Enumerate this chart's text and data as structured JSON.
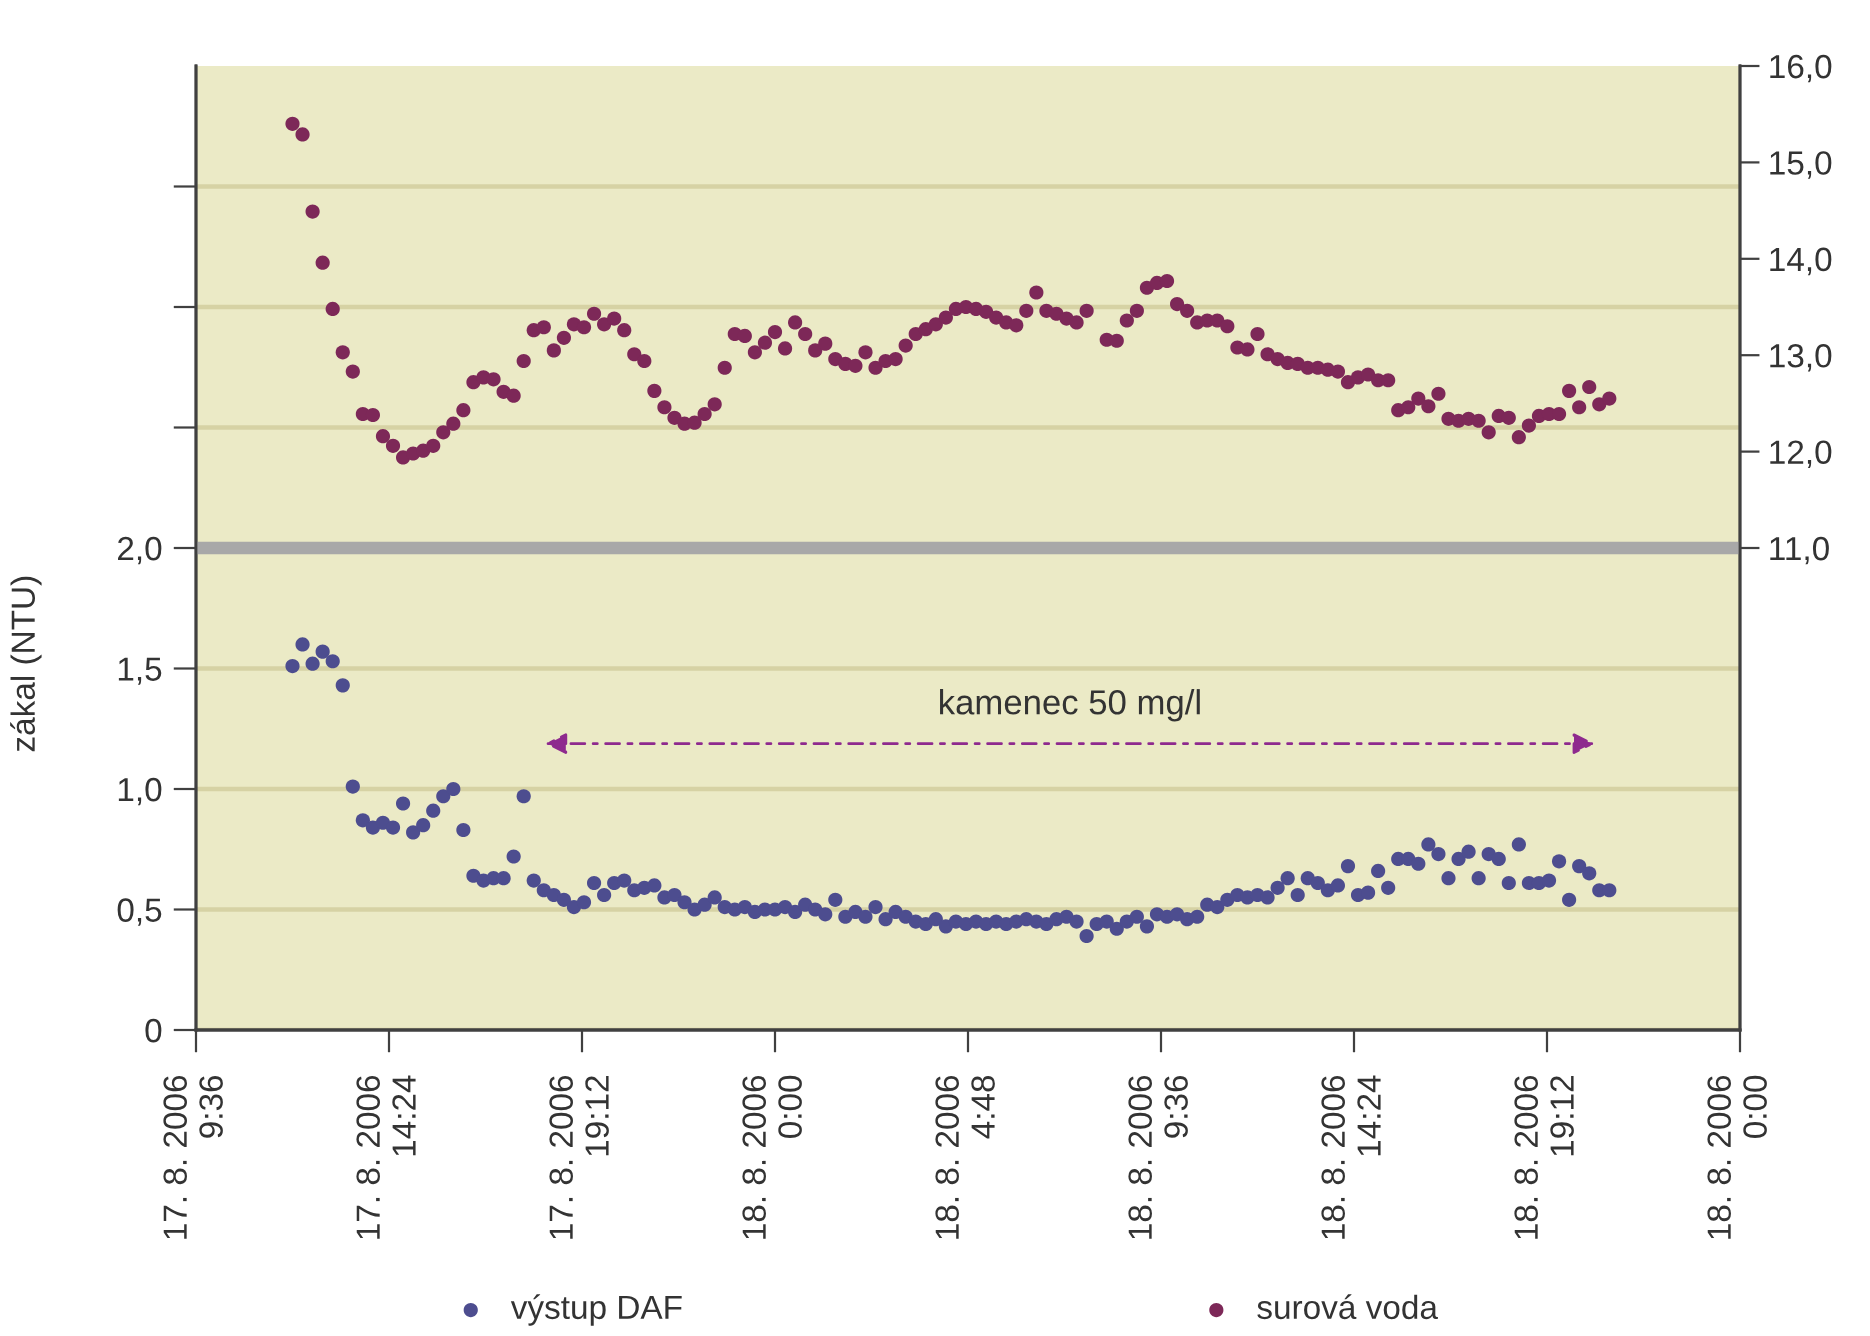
{
  "chart_data": {
    "type": "scatter",
    "ylabel": "zákal (NTU)",
    "x": [
      "2006-08-17T12:00",
      "2006-08-17T12:15",
      "2006-08-17T12:30",
      "2006-08-17T12:45",
      "2006-08-17T13:00",
      "2006-08-17T13:15",
      "2006-08-17T13:30",
      "2006-08-17T13:45",
      "2006-08-17T14:00",
      "2006-08-17T14:15",
      "2006-08-17T14:30",
      "2006-08-17T14:45",
      "2006-08-17T15:00",
      "2006-08-17T15:15",
      "2006-08-17T15:30",
      "2006-08-17T15:45",
      "2006-08-17T16:00",
      "2006-08-17T16:15",
      "2006-08-17T16:30",
      "2006-08-17T16:45",
      "2006-08-17T17:00",
      "2006-08-17T17:15",
      "2006-08-17T17:30",
      "2006-08-17T17:45",
      "2006-08-17T18:00",
      "2006-08-17T18:15",
      "2006-08-17T18:30",
      "2006-08-17T18:45",
      "2006-08-17T19:00",
      "2006-08-17T19:15",
      "2006-08-17T19:30",
      "2006-08-17T19:45",
      "2006-08-17T20:00",
      "2006-08-17T20:15",
      "2006-08-17T20:30",
      "2006-08-17T20:45",
      "2006-08-17T21:00",
      "2006-08-17T21:15",
      "2006-08-17T21:30",
      "2006-08-17T21:45",
      "2006-08-17T22:00",
      "2006-08-17T22:15",
      "2006-08-17T22:30",
      "2006-08-17T22:45",
      "2006-08-17T23:00",
      "2006-08-17T23:15",
      "2006-08-17T23:30",
      "2006-08-17T23:45",
      "2006-08-18T00:00",
      "2006-08-18T00:15",
      "2006-08-18T00:30",
      "2006-08-18T00:45",
      "2006-08-18T01:00",
      "2006-08-18T01:15",
      "2006-08-18T01:30",
      "2006-08-18T01:45",
      "2006-08-18T02:00",
      "2006-08-18T02:15",
      "2006-08-18T02:30",
      "2006-08-18T02:45",
      "2006-08-18T03:00",
      "2006-08-18T03:15",
      "2006-08-18T03:30",
      "2006-08-18T03:45",
      "2006-08-18T04:00",
      "2006-08-18T04:15",
      "2006-08-18T04:30",
      "2006-08-18T04:45",
      "2006-08-18T05:00",
      "2006-08-18T05:15",
      "2006-08-18T05:30",
      "2006-08-18T05:45",
      "2006-08-18T06:00",
      "2006-08-18T06:15",
      "2006-08-18T06:30",
      "2006-08-18T06:45",
      "2006-08-18T07:00",
      "2006-08-18T07:15",
      "2006-08-18T07:30",
      "2006-08-18T07:45",
      "2006-08-18T08:00",
      "2006-08-18T08:15",
      "2006-08-18T08:30",
      "2006-08-18T08:45",
      "2006-08-18T09:00",
      "2006-08-18T09:15",
      "2006-08-18T09:30",
      "2006-08-18T09:45",
      "2006-08-18T10:00",
      "2006-08-18T10:15",
      "2006-08-18T10:30",
      "2006-08-18T10:45",
      "2006-08-18T11:00",
      "2006-08-18T11:15",
      "2006-08-18T11:30",
      "2006-08-18T11:45",
      "2006-08-18T12:00",
      "2006-08-18T12:15",
      "2006-08-18T12:30",
      "2006-08-18T12:45",
      "2006-08-18T13:00",
      "2006-08-18T13:15",
      "2006-08-18T13:30",
      "2006-08-18T13:45",
      "2006-08-18T14:00",
      "2006-08-18T14:15",
      "2006-08-18T14:30",
      "2006-08-18T14:45",
      "2006-08-18T15:00",
      "2006-08-18T15:15",
      "2006-08-18T15:30",
      "2006-08-18T15:45",
      "2006-08-18T16:00",
      "2006-08-18T16:15",
      "2006-08-18T16:30",
      "2006-08-18T16:45",
      "2006-08-18T17:00",
      "2006-08-18T17:15",
      "2006-08-18T17:30",
      "2006-08-18T17:45",
      "2006-08-18T18:00",
      "2006-08-18T18:15",
      "2006-08-18T18:30",
      "2006-08-18T18:45",
      "2006-08-18T19:00",
      "2006-08-18T19:15",
      "2006-08-18T19:30",
      "2006-08-18T19:45",
      "2006-08-18T20:00",
      "2006-08-18T20:15",
      "2006-08-18T20:30",
      "2006-08-18T20:45"
    ],
    "series": [
      {
        "name": "výstup DAF",
        "color": "#4d4d8f",
        "values": [
          1.51,
          1.6,
          1.52,
          1.57,
          1.53,
          1.43,
          1.01,
          0.87,
          0.84,
          0.86,
          0.84,
          0.94,
          0.82,
          0.85,
          0.91,
          0.97,
          1.0,
          0.83,
          0.64,
          0.62,
          0.63,
          0.63,
          0.72,
          0.97,
          0.62,
          0.58,
          0.56,
          0.54,
          0.51,
          0.53,
          0.61,
          0.56,
          0.61,
          0.62,
          0.58,
          0.59,
          0.6,
          0.55,
          0.56,
          0.53,
          0.5,
          0.52,
          0.55,
          0.51,
          0.5,
          0.51,
          0.49,
          0.5,
          0.5,
          0.51,
          0.49,
          0.52,
          0.5,
          0.48,
          0.54,
          0.47,
          0.49,
          0.47,
          0.51,
          0.46,
          0.49,
          0.47,
          0.45,
          0.44,
          0.46,
          0.43,
          0.45,
          0.44,
          0.45,
          0.44,
          0.45,
          0.44,
          0.45,
          0.46,
          0.45,
          0.44,
          0.46,
          0.47,
          0.45,
          0.39,
          0.44,
          0.45,
          0.42,
          0.45,
          0.47,
          0.43,
          0.48,
          0.47,
          0.48,
          0.46,
          0.47,
          0.52,
          0.51,
          0.54,
          0.56,
          0.55,
          0.56,
          0.55,
          0.59,
          0.63,
          0.56,
          0.63,
          0.61,
          0.58,
          0.6,
          0.68,
          0.56,
          0.57,
          0.66,
          0.59,
          0.71,
          0.71,
          0.69,
          0.77,
          0.73,
          0.63,
          0.71,
          0.74,
          0.63,
          0.73,
          0.71,
          0.61,
          0.77,
          0.61,
          0.61,
          0.62,
          0.7,
          0.54,
          0.68,
          0.65,
          0.58,
          0.58
        ]
      },
      {
        "name": "surová voda",
        "color": "#7d2858",
        "axis": "y2",
        "values": [
          15.4,
          15.29,
          14.49,
          13.96,
          13.48,
          13.03,
          12.83,
          12.39,
          12.38,
          12.16,
          12.06,
          11.94,
          11.98,
          12.01,
          12.06,
          12.2,
          12.29,
          12.43,
          12.72,
          12.77,
          12.75,
          12.62,
          12.58,
          12.94,
          13.26,
          13.29,
          13.05,
          13.18,
          13.32,
          13.29,
          13.43,
          13.32,
          13.38,
          13.26,
          13.01,
          12.94,
          12.63,
          12.46,
          12.35,
          12.29,
          12.3,
          12.39,
          12.49,
          12.87,
          13.22,
          13.2,
          13.03,
          13.13,
          13.24,
          13.07,
          13.34,
          13.22,
          13.05,
          13.12,
          12.96,
          12.91,
          12.89,
          13.03,
          12.87,
          12.94,
          12.96,
          13.1,
          13.22,
          13.27,
          13.32,
          13.39,
          13.48,
          13.5,
          13.48,
          13.45,
          13.39,
          13.34,
          13.31,
          13.46,
          13.65,
          13.46,
          13.43,
          13.38,
          13.34,
          13.46,
          null,
          13.16,
          13.15,
          13.36,
          13.46,
          13.7,
          13.75,
          13.77,
          13.53,
          13.46,
          13.34,
          13.36,
          13.36,
          13.3,
          13.08,
          13.06,
          13.22,
          13.01,
          12.96,
          12.92,
          12.91,
          12.87,
          12.87,
          12.85,
          12.83,
          12.72,
          12.77,
          12.8,
          12.74,
          12.74,
          12.43,
          12.46,
          12.55,
          12.47,
          12.6,
          12.34,
          12.32,
          12.34,
          12.32,
          12.2,
          12.37,
          12.35,
          12.15,
          12.27,
          12.37,
          12.39,
          12.39,
          12.63,
          12.46,
          12.67,
          12.49,
          12.55
        ]
      }
    ],
    "xlim": [
      "2006-08-17T09:36",
      "2006-08-19T00:00"
    ],
    "xticks": [
      {
        "value": "2006-08-17T09:36",
        "label": "17. 8. 2006\n9:36"
      },
      {
        "value": "2006-08-17T14:24",
        "label": "17. 8. 2006\n14:24"
      },
      {
        "value": "2006-08-17T19:12",
        "label": "17. 8. 2006\n19:12"
      },
      {
        "value": "2006-08-18T00:00",
        "label": "18. 8. 2006\n0:00"
      },
      {
        "value": "2006-08-18T04:48",
        "label": "18. 8. 2006\n4:48"
      },
      {
        "value": "2006-08-18T09:36",
        "label": "18. 8. 2006\n9:36"
      },
      {
        "value": "2006-08-18T14:24",
        "label": "18. 8. 2006\n14:24"
      },
      {
        "value": "2006-08-18T19:12",
        "label": "18. 8. 2006\n19:12"
      },
      {
        "value": "2006-08-19T00:00",
        "label": "18. 8. 2006\n0:00"
      }
    ],
    "ylim": [
      0,
      4
    ],
    "yticks": [
      0,
      {
        "value": 0.5,
        "label": "0,5"
      },
      {
        "value": 1,
        "label": "1,0"
      },
      {
        "value": 1.5,
        "label": "1,5"
      },
      {
        "value": 2,
        "label": "2,0"
      },
      {
        "value": 2.5,
        "label": null
      },
      {
        "value": 3,
        "label": null
      },
      {
        "value": 3.5,
        "label": null
      }
    ],
    "y2lim": [
      6,
      16
    ],
    "y2ticks": [
      {
        "value": 11,
        "label": "11,0"
      },
      {
        "value": 12,
        "label": "12,0"
      },
      {
        "value": 13,
        "label": "13,0"
      },
      {
        "value": 14,
        "label": "14,0"
      },
      {
        "value": 15,
        "label": "15,0"
      },
      {
        "value": 16,
        "label": "16,0"
      }
    ],
    "ref_lines": [
      {
        "axis": "y",
        "value": 2,
        "color": "#a8a8a8"
      }
    ],
    "annotations": [
      "kamenec 50 mg/l"
    ],
    "grid": "y",
    "legend": "bottom",
    "marker": "circle"
  }
}
